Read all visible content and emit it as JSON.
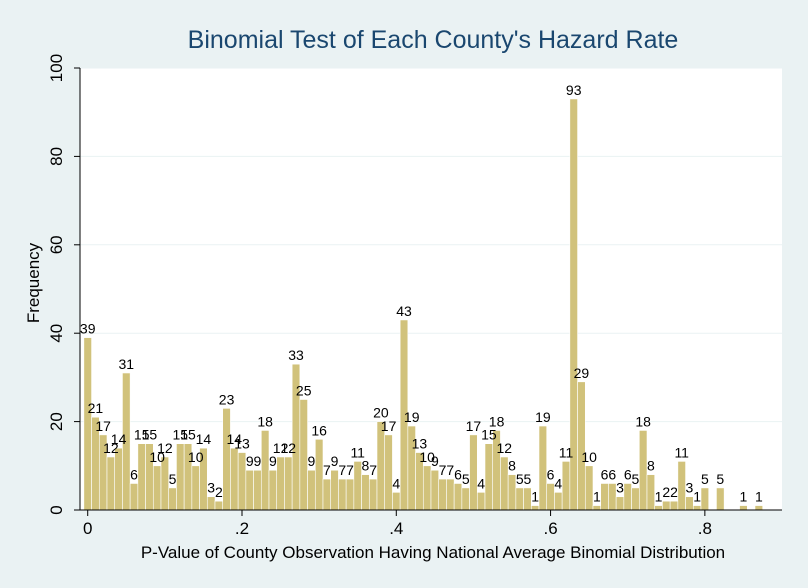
{
  "chart_data": {
    "type": "bar",
    "title": "Binomial Test of Each County's Hazard Rate",
    "xlabel": "P-Value of County Observation Having National Average Binomial Distribution",
    "ylabel": "Frequency",
    "xlim": [
      -0.01,
      0.9
    ],
    "ylim": [
      0,
      100
    ],
    "grid": true,
    "bin_width": 0.01,
    "x_ticks": [
      {
        "value": 0,
        "label": "0"
      },
      {
        "value": 0.2,
        "label": ".2"
      },
      {
        "value": 0.4,
        "label": ".4"
      },
      {
        "value": 0.6,
        "label": ".6"
      },
      {
        "value": 0.8,
        "label": ".8"
      }
    ],
    "y_ticks": [
      {
        "value": 0,
        "label": "0"
      },
      {
        "value": 20,
        "label": "20"
      },
      {
        "value": 40,
        "label": "40"
      },
      {
        "value": 60,
        "label": "60"
      },
      {
        "value": 80,
        "label": "80"
      },
      {
        "value": 100,
        "label": "100"
      }
    ],
    "x": [
      0.0,
      0.01,
      0.02,
      0.03,
      0.04,
      0.05,
      0.06,
      0.07,
      0.08,
      0.09,
      0.1,
      0.11,
      0.12,
      0.13,
      0.14,
      0.15,
      0.16,
      0.17,
      0.18,
      0.19,
      0.2,
      0.21,
      0.22,
      0.23,
      0.24,
      0.25,
      0.26,
      0.27,
      0.28,
      0.29,
      0.3,
      0.31,
      0.32,
      0.33,
      0.34,
      0.35,
      0.36,
      0.37,
      0.38,
      0.39,
      0.4,
      0.41,
      0.42,
      0.43,
      0.44,
      0.45,
      0.46,
      0.47,
      0.48,
      0.49,
      0.5,
      0.51,
      0.52,
      0.53,
      0.54,
      0.55,
      0.56,
      0.57,
      0.58,
      0.59,
      0.6,
      0.61,
      0.62,
      0.63,
      0.64,
      0.65,
      0.66,
      0.67,
      0.68,
      0.69,
      0.7,
      0.71,
      0.72,
      0.73,
      0.74,
      0.75,
      0.76,
      0.77,
      0.78,
      0.79,
      0.8,
      0.82,
      0.85,
      0.87
    ],
    "values": [
      39,
      21,
      17,
      12,
      14,
      31,
      6,
      15,
      15,
      10,
      12,
      5,
      15,
      15,
      10,
      14,
      3,
      2,
      23,
      14,
      13,
      9,
      9,
      18,
      9,
      12,
      12,
      33,
      25,
      9,
      16,
      7,
      9,
      7,
      7,
      11,
      8,
      7,
      20,
      17,
      4,
      43,
      19,
      13,
      10,
      9,
      7,
      7,
      6,
      5,
      17,
      4,
      15,
      18,
      12,
      8,
      5,
      5,
      1,
      19,
      6,
      4,
      11,
      93,
      29,
      10,
      1,
      6,
      6,
      3,
      6,
      5,
      18,
      8,
      1,
      2,
      2,
      11,
      3,
      1,
      5,
      5,
      1,
      1
    ]
  }
}
